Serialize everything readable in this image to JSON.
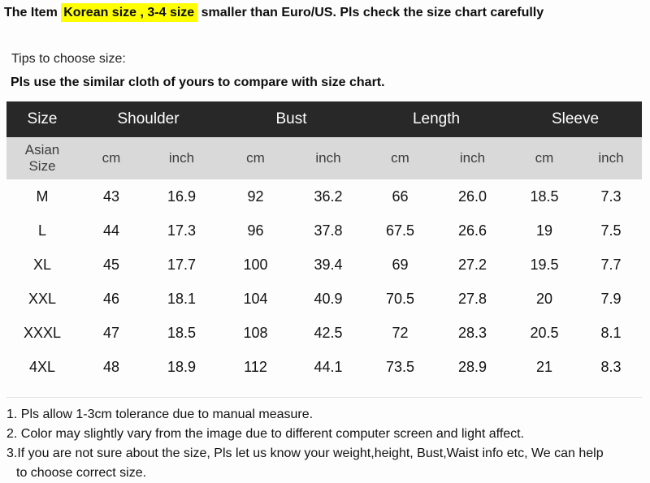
{
  "header": {
    "prefix": "The Item ",
    "highlight": "Korean size , 3-4 size",
    "suffix": " smaller than Euro/US. Pls check the size chart carefully"
  },
  "tips": {
    "line1": "Tips to choose size:",
    "line2": "Pls use the similar cloth of yours to compare with size chart."
  },
  "colors": {
    "highlight": "#ffff00",
    "table_header_bg": "#282828",
    "table_header_text": "#ffffff",
    "unit_row_bg": "#d9d9d9",
    "unit_row_text": "#3d3d3d"
  },
  "size_chart": {
    "type": "table",
    "group_headers": [
      {
        "label": "Size"
      },
      {
        "label": "Shoulder"
      },
      {
        "label": "Bust"
      },
      {
        "label": "Length"
      },
      {
        "label": "Sleeve"
      }
    ],
    "unit_row": {
      "label_lines": [
        "Asian",
        "Size"
      ],
      "units": [
        "cm",
        "inch",
        "cm",
        "inch",
        "cm",
        "inch",
        "cm",
        "inch"
      ]
    },
    "rows": [
      {
        "size": "M",
        "values": [
          "43",
          "16.9",
          "92",
          "36.2",
          "66",
          "26.0",
          "18.5",
          "7.3"
        ]
      },
      {
        "size": "L",
        "values": [
          "44",
          "17.3",
          "96",
          "37.8",
          "67.5",
          "26.6",
          "19",
          "7.5"
        ]
      },
      {
        "size": "XL",
        "values": [
          "45",
          "17.7",
          "100",
          "39.4",
          "69",
          "27.2",
          "19.5",
          "7.7"
        ]
      },
      {
        "size": "XXL",
        "values": [
          "46",
          "18.1",
          "104",
          "40.9",
          "70.5",
          "27.8",
          "20",
          "7.9"
        ]
      },
      {
        "size": "XXXL",
        "values": [
          "47",
          "18.5",
          "108",
          "42.5",
          "72",
          "28.3",
          "20.5",
          "8.1"
        ]
      },
      {
        "size": "4XL",
        "values": [
          "48",
          "18.9",
          "112",
          "44.1",
          "73.5",
          "28.9",
          "21",
          "8.3"
        ]
      }
    ]
  },
  "notes": [
    "1. Pls allow 1-3cm tolerance due to manual measure.",
    "2. Color may slightly vary from the image due to different computer screen and light affect.",
    "3.If you are not sure about the size, Pls let us know your weight,height, Bust,Waist info etc, We can help",
    "to choose correct size."
  ]
}
